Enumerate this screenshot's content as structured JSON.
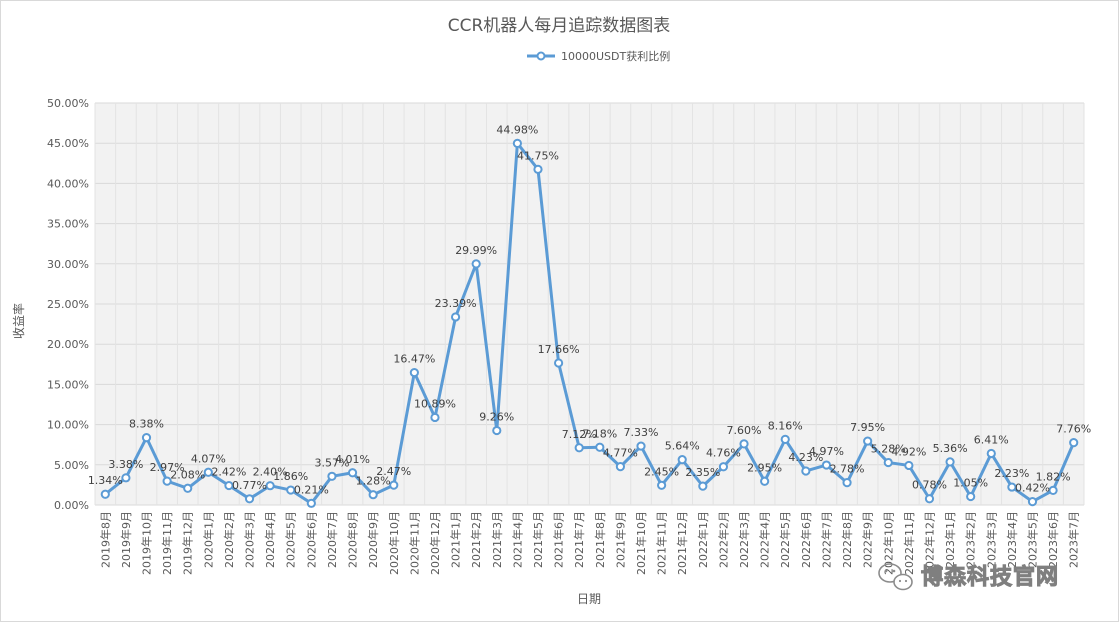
{
  "chart_data": {
    "type": "line",
    "title": "CCR机器人每月追踪数据图表",
    "xlabel": "日期",
    "ylabel": "收益率",
    "ylim": [
      0,
      50
    ],
    "y_ticks": [
      "0.00%",
      "5.00%",
      "10.00%",
      "15.00%",
      "20.00%",
      "25.00%",
      "30.00%",
      "35.00%",
      "40.00%",
      "45.00%",
      "50.00%"
    ],
    "grid": true,
    "legend_position": "top",
    "line_color": "#5b9bd5",
    "categories": [
      "2019年8月",
      "2019年9月",
      "2019年10月",
      "2019年11月",
      "2019年12月",
      "2020年1月",
      "2020年2月",
      "2020年3月",
      "2020年4月",
      "2020年5月",
      "2020年6月",
      "2020年7月",
      "2020年8月",
      "2020年9月",
      "2020年10月",
      "2020年11月",
      "2020年12月",
      "2021年1月",
      "2021年2月",
      "2021年3月",
      "2021年4月",
      "2021年5月",
      "2021年6月",
      "2021年7月",
      "2021年8月",
      "2021年9月",
      "2021年10月",
      "2021年11月",
      "2021年12月",
      "2022年1月",
      "2022年2月",
      "2022年3月",
      "2022年4月",
      "2022年5月",
      "2022年6月",
      "2022年7月",
      "2022年8月",
      "2022年9月",
      "2022年10月",
      "2022年11月",
      "2022年12月",
      "2023年1月",
      "2023年2月",
      "2023年3月",
      "2023年4月",
      "2023年5月",
      "2023年6月",
      "2023年7月"
    ],
    "series": [
      {
        "name": "10000USDT获利比例",
        "values": [
          1.34,
          3.38,
          8.38,
          2.97,
          2.08,
          4.07,
          2.42,
          0.77,
          2.4,
          1.86,
          0.21,
          3.57,
          4.01,
          1.28,
          2.47,
          16.47,
          10.89,
          23.39,
          29.99,
          9.26,
          44.98,
          41.75,
          17.66,
          7.12,
          7.18,
          4.77,
          7.33,
          2.45,
          5.64,
          2.35,
          4.76,
          7.6,
          2.95,
          8.16,
          4.23,
          4.97,
          2.78,
          7.95,
          5.28,
          4.92,
          0.78,
          5.36,
          1.05,
          6.41,
          2.23,
          0.42,
          1.82,
          7.76
        ],
        "labels": [
          "1.34%",
          "3.38%",
          "8.38%",
          "2.97%",
          "2.08%",
          "4.07%",
          "2.42%",
          "0.77%",
          "2.40%",
          "1.86%",
          "0.21%",
          "3.57%",
          "4.01%",
          "1.28%",
          "2.47%",
          "16.47%",
          "10.89%",
          "23.39%",
          "29.99%",
          "9.26%",
          "44.98%",
          "41.75%",
          "17.66%",
          "7.12%",
          "7.18%",
          "4.77%",
          "7.33%",
          "2.45%",
          "5.64%",
          "2.35%",
          "4.76%",
          "7.60%",
          "2.95%",
          "8.16%",
          "4.23%",
          "4.97%",
          "2.78%",
          "7.95%",
          "5.28%",
          "4.92%",
          "0.78%",
          "5.36%",
          "1.05%",
          "6.41%",
          "2.23%",
          "0.42%",
          "1.82%",
          "7.76%"
        ]
      }
    ]
  },
  "watermark": {
    "text": "博森科技官网",
    "icon": "wechat-icon"
  }
}
